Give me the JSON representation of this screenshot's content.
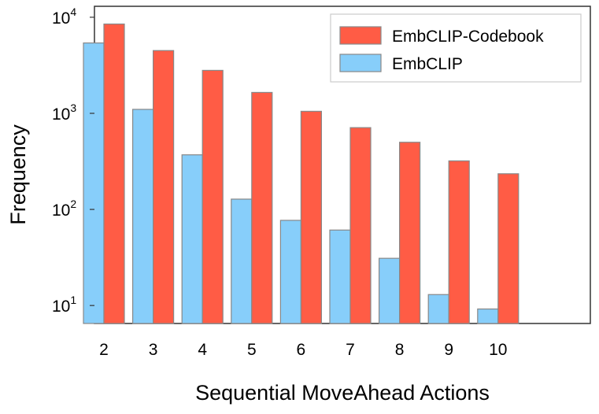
{
  "chart_data": {
    "type": "bar",
    "title": "",
    "xlabel": "Sequential MoveAhead Actions",
    "ylabel": "Frequency",
    "y_scale": "log",
    "ylim": [
      6.5,
      13000
    ],
    "categories": [
      "2",
      "3",
      "4",
      "5",
      "6",
      "7",
      "8",
      "9",
      "10"
    ],
    "y_ticks": [
      {
        "base": "10",
        "exp": "1",
        "value": 10
      },
      {
        "base": "10",
        "exp": "2",
        "value": 100
      },
      {
        "base": "10",
        "exp": "3",
        "value": 1000
      },
      {
        "base": "10",
        "exp": "4",
        "value": 10000
      }
    ],
    "series": [
      {
        "name": "EmbCLIP-Codebook",
        "color": "#FF5C45",
        "values": [
          8500,
          4500,
          2800,
          1650,
          1050,
          710,
          500,
          320,
          235
        ]
      },
      {
        "name": "EmbCLIP",
        "color": "#87CEFA",
        "values": [
          5400,
          1100,
          370,
          128,
          77,
          61,
          31,
          13,
          9.2
        ]
      }
    ],
    "legend": {
      "position": "top-right"
    },
    "grid": false
  }
}
